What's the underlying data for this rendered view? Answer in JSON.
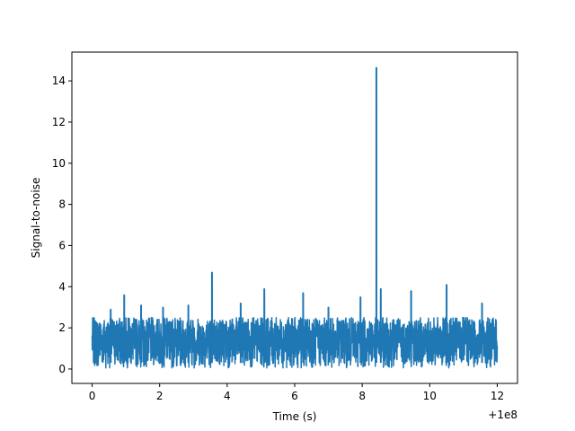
{
  "chart_data": {
    "type": "line",
    "title": "",
    "xlabel": "Time (s)",
    "ylabel": "Signal-to-noise",
    "x_offset_label": "+1e8",
    "xlim": [
      -0.6,
      12.6
    ],
    "ylim": [
      -0.7,
      15.4
    ],
    "x_ticks": [
      0,
      2,
      4,
      6,
      8,
      10,
      12
    ],
    "x_tick_labels": [
      "0",
      "2",
      "4",
      "6",
      "8",
      "10",
      "12"
    ],
    "y_ticks": [
      0,
      2,
      4,
      6,
      8,
      10,
      12,
      14
    ],
    "y_tick_labels": [
      "0",
      "2",
      "4",
      "6",
      "8",
      "10",
      "12",
      "14"
    ],
    "grid": false,
    "series": [
      {
        "color": "#1f77b4",
        "x_range": [
          0,
          12
        ],
        "noise_band": [
          0.05,
          2.5
        ],
        "peaks": [
          {
            "x": 0.55,
            "y": 2.9
          },
          {
            "x": 0.95,
            "y": 3.6
          },
          {
            "x": 1.45,
            "y": 3.1
          },
          {
            "x": 2.1,
            "y": 3.0
          },
          {
            "x": 2.85,
            "y": 3.1
          },
          {
            "x": 3.55,
            "y": 4.7
          },
          {
            "x": 4.4,
            "y": 3.2
          },
          {
            "x": 5.1,
            "y": 3.9
          },
          {
            "x": 6.25,
            "y": 3.7
          },
          {
            "x": 7.0,
            "y": 3.0
          },
          {
            "x": 7.95,
            "y": 3.5
          },
          {
            "x": 8.42,
            "y": 14.65
          },
          {
            "x": 8.55,
            "y": 3.9
          },
          {
            "x": 9.45,
            "y": 3.8
          },
          {
            "x": 10.5,
            "y": 4.1
          },
          {
            "x": 11.55,
            "y": 3.2
          }
        ]
      }
    ]
  }
}
